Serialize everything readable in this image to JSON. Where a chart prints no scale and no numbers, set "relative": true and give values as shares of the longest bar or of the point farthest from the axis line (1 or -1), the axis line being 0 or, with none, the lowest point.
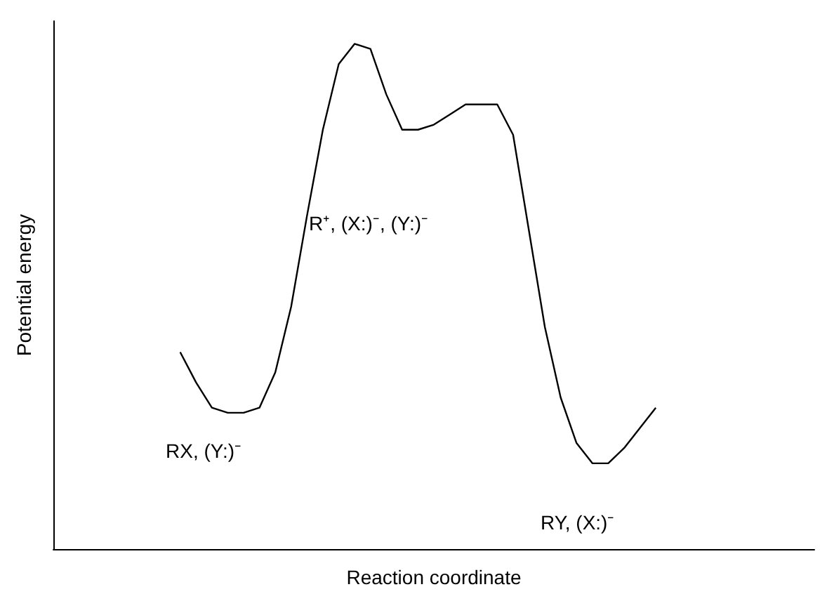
{
  "chart_data": {
    "type": "line",
    "relative": true,
    "xlabel": "Reaction coordinate",
    "ylabel": "Potential energy",
    "grid": false,
    "categories": [
      null,
      null,
      null,
      null,
      null,
      null,
      null,
      null,
      null,
      null,
      null,
      null,
      null,
      null,
      null,
      null,
      null,
      null,
      null,
      null,
      null,
      null,
      null,
      null,
      null,
      null,
      null,
      null,
      null,
      null,
      null,
      null,
      null,
      null,
      null,
      null,
      null,
      null,
      null,
      null,
      null,
      null,
      null,
      null,
      null,
      null,
      null,
      null,
      null
    ],
    "series": [
      {
        "color": "#000000",
        "values": [
          null,
          null,
          null,
          null,
          null,
          null,
          null,
          null,
          0.39,
          0.33,
          0.28,
          0.27,
          0.27,
          0.28,
          0.35,
          0.48,
          0.66,
          0.83,
          0.96,
          1,
          0.99,
          0.9,
          0.83,
          0.83,
          0.84,
          0.86,
          0.88,
          0.88,
          0.88,
          0.82,
          0.63,
          0.44,
          0.3,
          0.21,
          0.17,
          0.17,
          0.2,
          0.24,
          0.28,
          null,
          null,
          null,
          null,
          null,
          null,
          null,
          null,
          null,
          null
        ]
      }
    ],
    "annotations": [
      "RX, (Y:)⁻",
      "R⁺, (X:)⁻, (Y:)⁻",
      "RY, (X:)⁻"
    ]
  }
}
